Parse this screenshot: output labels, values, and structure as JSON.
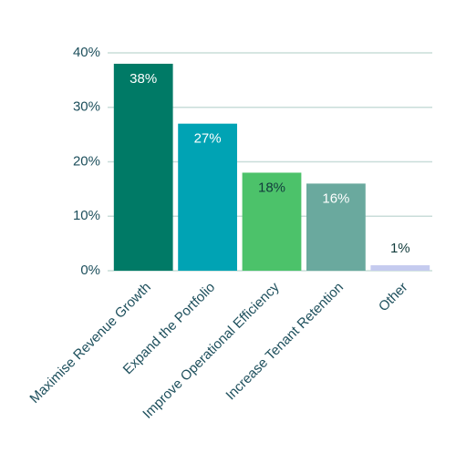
{
  "chart_data": {
    "type": "bar",
    "categories": [
      "Maximise Revenue Growth",
      "Expand the Portfolio",
      "Improve Operational Efficiency",
      "Increase Tenant Retention",
      "Other"
    ],
    "values": [
      38,
      27,
      18,
      16,
      1
    ],
    "value_labels": [
      "38%",
      "27%",
      "18%",
      "16%",
      "1%"
    ],
    "colors": [
      "#007a66",
      "#00a3b4",
      "#4cc26a",
      "#6aa99e",
      "#c5cbef"
    ],
    "label_colors": [
      "#ffffff",
      "#ffffff",
      "#123c3c",
      "#ffffff",
      "#123c3c"
    ],
    "ylim": [
      0,
      40
    ],
    "yticks": [
      {
        "value": 0,
        "label": "0%"
      },
      {
        "value": 10,
        "label": "10%"
      },
      {
        "value": 20,
        "label": "20%"
      },
      {
        "value": 30,
        "label": "30%"
      },
      {
        "value": 40,
        "label": "40%"
      }
    ],
    "grid": true
  }
}
